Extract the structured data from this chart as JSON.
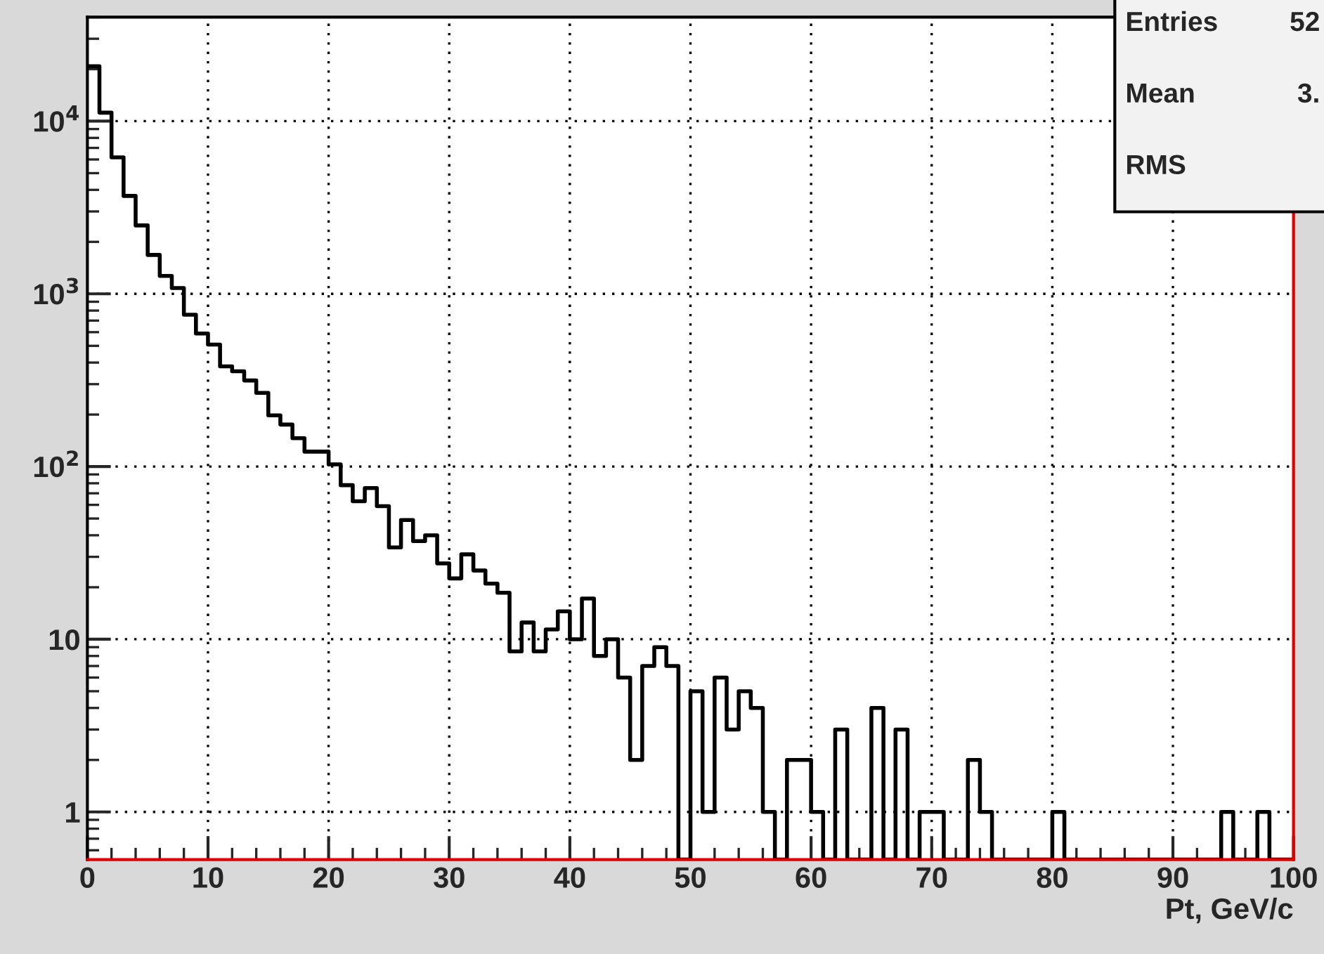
{
  "chart_data": {
    "type": "histogram",
    "xlabel": "Pt, GeV/c",
    "bins": [
      0,
      1,
      2,
      3,
      4,
      5,
      6,
      7,
      8,
      9,
      10,
      11,
      12,
      13,
      14,
      15,
      16,
      17,
      18,
      19,
      20,
      21,
      22,
      23,
      24,
      25,
      26,
      27,
      28,
      29,
      30,
      31,
      32,
      33,
      34,
      35,
      36,
      37,
      38,
      39,
      40,
      41,
      42,
      43,
      44,
      45,
      46,
      47,
      48,
      49,
      50,
      51,
      52,
      53,
      54,
      55,
      56,
      57,
      58,
      59,
      60,
      61,
      62,
      63,
      64,
      65,
      66,
      67,
      68,
      69,
      70,
      71,
      72,
      73,
      74,
      75,
      76,
      77,
      78,
      79,
      80,
      81,
      82,
      83,
      84,
      85,
      86,
      87,
      88,
      89,
      90,
      91,
      92,
      93,
      94,
      95,
      96,
      97,
      98,
      99,
      100
    ],
    "values": [
      20800,
      11200,
      6170,
      3690,
      2490,
      1680,
      1270,
      1080,
      757,
      589,
      508,
      380,
      356,
      315,
      267,
      198,
      175,
      146,
      122,
      122,
      103,
      78,
      63,
      75,
      59,
      34,
      49,
      37,
      40,
      27.5,
      22.5,
      31,
      25,
      21,
      18.6,
      8.5,
      12.5,
      8.5,
      11.4,
      14.5,
      10,
      17.2,
      8,
      10,
      6,
      2,
      7,
      9,
      7,
      null,
      5,
      1,
      6,
      3,
      5,
      4,
      1,
      null,
      2,
      2,
      1,
      null,
      3,
      null,
      null,
      4,
      null,
      3,
      null,
      1,
      1,
      null,
      null,
      2,
      1,
      null,
      null,
      null,
      null,
      null,
      1,
      null,
      null,
      null,
      null,
      null,
      null,
      null,
      null,
      null,
      null,
      null,
      null,
      null,
      1,
      null,
      null,
      1,
      null,
      null
    ],
    "color": "#000000",
    "log": "y",
    "xlim": [
      0,
      100
    ],
    "xticks": [
      0,
      10,
      20,
      30,
      40,
      50,
      60,
      70,
      80,
      90,
      100
    ],
    "ylim": [
      0.53,
      40000
    ],
    "yticks": [
      1,
      10,
      {
        "value": 100,
        "label": "10$^{2}$"
      },
      {
        "value": 1000,
        "label": "10$^{3}$"
      },
      {
        "value": 10000,
        "label": "10$^{4}$"
      }
    ],
    "grid": true,
    "annotations": [
      "Entries",
      "52",
      "Mean",
      "3.",
      "RMS"
    ]
  }
}
